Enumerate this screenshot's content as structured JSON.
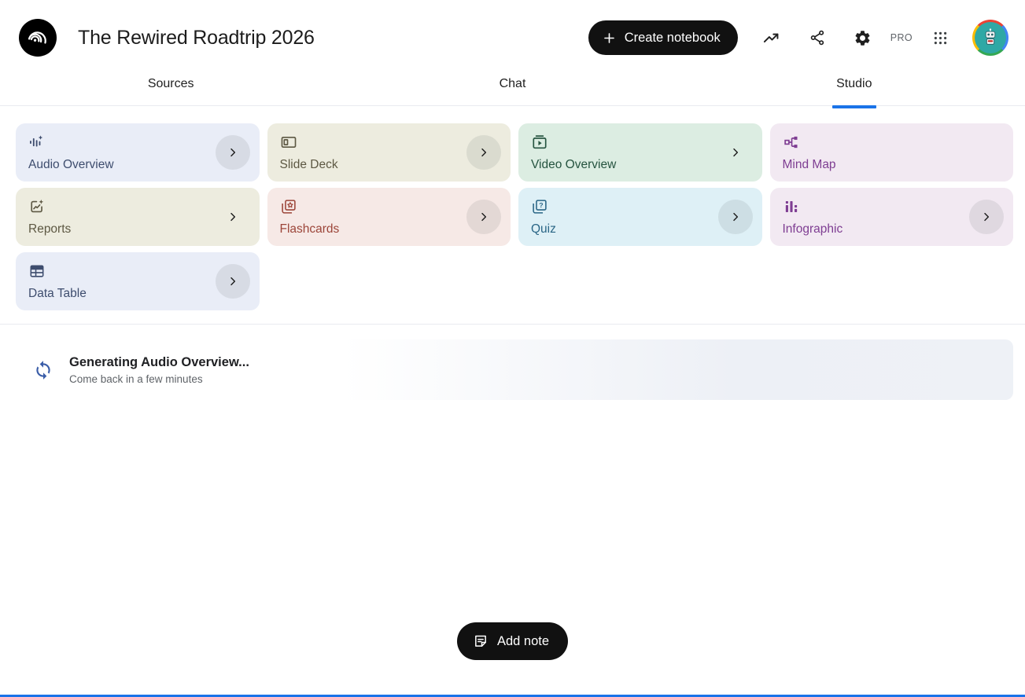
{
  "header": {
    "title": "The Rewired Roadtrip 2026",
    "create_button_label": "Create notebook",
    "pro_badge": "PRO"
  },
  "tabs": [
    {
      "label": "Sources",
      "active": false
    },
    {
      "label": "Chat",
      "active": false
    },
    {
      "label": "Studio",
      "active": true
    }
  ],
  "studio_cards": [
    {
      "label": "Audio Overview",
      "icon": "audio-overview-icon",
      "bg": "#e9edf7",
      "fg": "#3e4d6e",
      "chevron": "circle"
    },
    {
      "label": "Slide Deck",
      "icon": "slide-deck-icon",
      "bg": "#edecdf",
      "fg": "#5d5843",
      "chevron": "circle"
    },
    {
      "label": "Video Overview",
      "icon": "video-overview-icon",
      "bg": "#dcede2",
      "fg": "#265440",
      "chevron": "plain"
    },
    {
      "label": "Mind Map",
      "icon": "mind-map-icon",
      "bg": "#f2e9f2",
      "fg": "#7e3d92",
      "chevron": "none"
    },
    {
      "label": "Reports",
      "icon": "reports-icon",
      "bg": "#edecdf",
      "fg": "#5d5843",
      "chevron": "plain"
    },
    {
      "label": "Flashcards",
      "icon": "flashcards-icon",
      "bg": "#f6e9e6",
      "fg": "#9c4539",
      "chevron": "circle"
    },
    {
      "label": "Quiz",
      "icon": "quiz-icon",
      "bg": "#def0f6",
      "fg": "#2a6686",
      "chevron": "circle"
    },
    {
      "label": "Infographic",
      "icon": "infographic-icon",
      "bg": "#f2e9f2",
      "fg": "#7e3d92",
      "chevron": "circle"
    },
    {
      "label": "Data Table",
      "icon": "data-table-icon",
      "bg": "#e9edf7",
      "fg": "#3e4d6e",
      "chevron": "circle"
    }
  ],
  "generating": {
    "title": "Generating Audio Overview...",
    "subtitle": "Come back in a few minutes"
  },
  "add_note": {
    "label": "Add note"
  },
  "colors": {
    "accent_blue": "#1a73e8",
    "button_black": "#111111",
    "sync_icon": "#3a5da8",
    "progress_bar": "#1a73e8"
  }
}
